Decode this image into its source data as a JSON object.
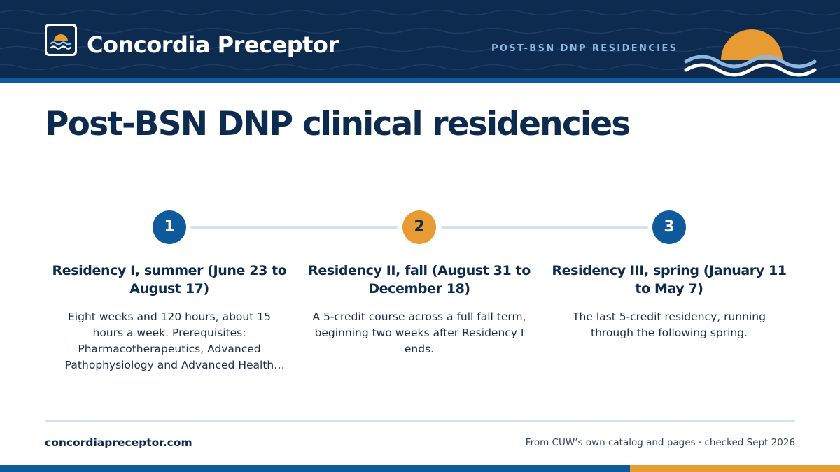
{
  "header": {
    "brand": "Concordia Preceptor",
    "eyebrow": "POST-BSN DNP RESIDENCIES",
    "colors": {
      "navy": "#0d2a4f",
      "blue": "#0f5a9c",
      "orange": "#e89b32",
      "light_blue": "#8fb8e0"
    },
    "icons": {
      "logo": "sun-over-waves-icon",
      "decoration": "sun-over-waves-illustration"
    }
  },
  "title": "Post-BSN DNP clinical residencies",
  "steps": [
    {
      "number": "1",
      "heading": "Residency I, summer (June 23 to August 17)",
      "body": "Eight weeks and 120 hours, about 15 hours a week. Prerequisites: Pharmacotherapeutics, Advanced Pathophysiology and Advanced Health Assessment."
    },
    {
      "number": "2",
      "heading": "Residency II, fall (August 31 to December 18)",
      "body": "A 5-credit course across a full fall term, beginning two weeks after Residency I ends."
    },
    {
      "number": "3",
      "heading": "Residency III, spring (January 11 to May 7)",
      "body": "The last 5-credit residency, running through the following spring."
    }
  ],
  "footer": {
    "url": "concordiapreceptor.com",
    "source": "From CUW’s own catalog and pages · checked Sept 2026"
  }
}
